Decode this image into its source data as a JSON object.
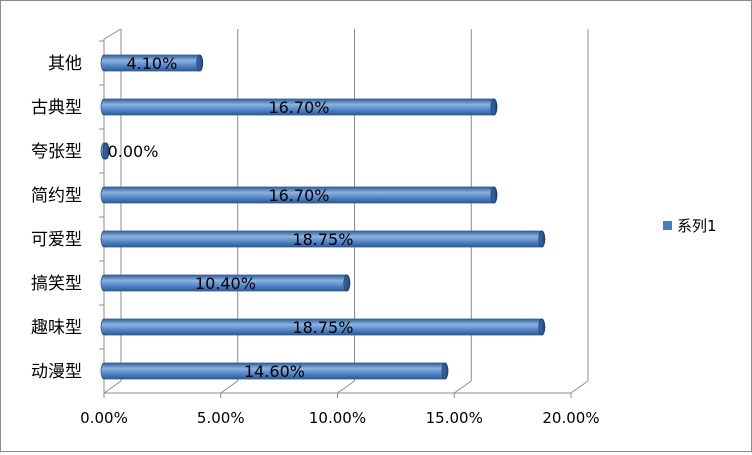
{
  "chart_data": {
    "type": "bar",
    "orientation": "horizontal",
    "title": "",
    "xlabel": "",
    "ylabel": "",
    "categories": [
      "其他",
      "古典型",
      "夸张型",
      "简约型",
      "可爱型",
      "搞笑型",
      "趣味型",
      "动漫型"
    ],
    "series": [
      {
        "name": "系列1",
        "values": [
          4.1,
          16.7,
          0.0,
          16.7,
          18.75,
          10.4,
          18.75,
          14.6
        ],
        "labels": [
          "4.10%",
          "16.70%",
          "0.00%",
          "16.70%",
          "18.75%",
          "10.40%",
          "18.75%",
          "14.60%"
        ],
        "color": "#4a7ebb"
      }
    ],
    "xlim": [
      0,
      20
    ],
    "x_ticks": [
      0,
      5,
      10,
      15,
      20
    ],
    "x_tick_labels": [
      "0.00%",
      "5.00%",
      "10.00%",
      "15.00%",
      "20.00%"
    ],
    "grid": true,
    "legend_position": "right",
    "style": "3d-cylinder"
  }
}
